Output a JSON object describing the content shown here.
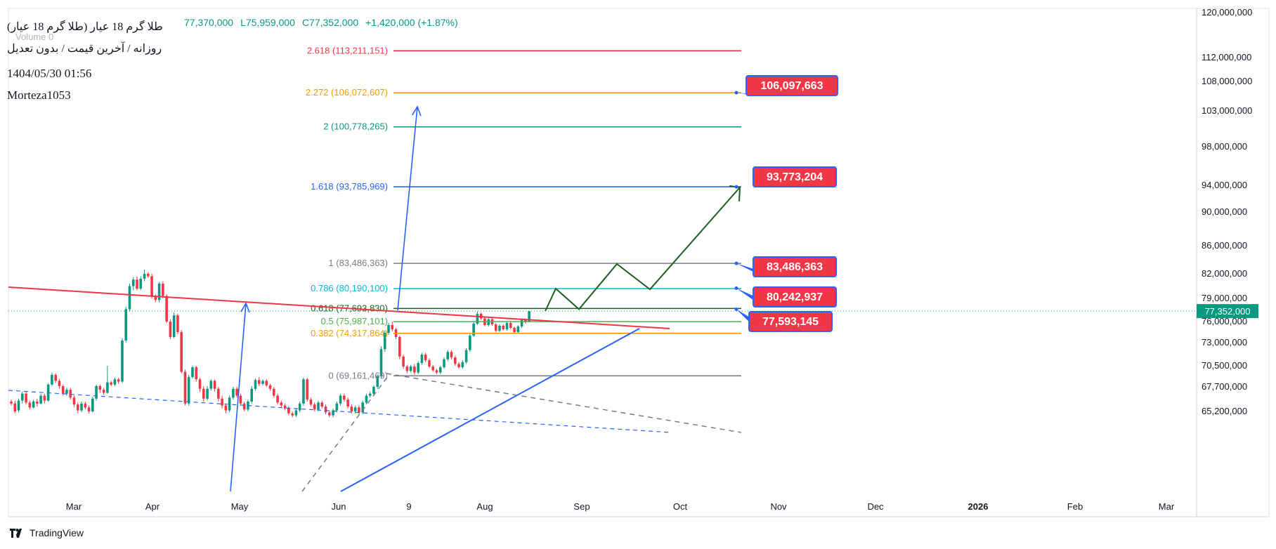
{
  "header": {
    "title": "(طلا گرم 18 عیار (طلا گرم 18 عیار",
    "subtitle": "روزانه / آخرین قیمت / بدون تعدیل",
    "date": "1404/05/30 01:56",
    "author": "Morteza1053",
    "volume_label": "Volume",
    "volume_value": "0",
    "ohlc": {
      "high": "77,370,000",
      "low": "L75,959,000",
      "close": "C77,352,000",
      "change": "+1,420,000 (+1.87%)"
    }
  },
  "brand": "TradingView",
  "colors": {
    "up": "#089981",
    "down": "#f23645",
    "price_badge": "#089981",
    "callout": "#f23645",
    "callout_border": "#2962ff",
    "projection": "#1b5e20",
    "trend_red": "#f23645",
    "trend_blue": "#2962ff"
  },
  "chart_data": {
    "type": "candlestick",
    "symbol": "طلا گرم 18 عیار",
    "interval": "daily",
    "y_axis": {
      "ticks": [
        "120,000,000",
        "112,000,000",
        "108,000,000",
        "103,000,000",
        "98,000,000",
        "94,000,000",
        "90,000,000",
        "86,000,000",
        "82,000,000",
        "79,000,000",
        "76,000,000",
        "73,000,000",
        "70,500,000",
        "67,700,000",
        "65,200,000"
      ],
      "tick_values": [
        120000000,
        112000000,
        108000000,
        103000000,
        98000000,
        94000000,
        90000000,
        86000000,
        82000000,
        79000000,
        76000000,
        73000000,
        70500000,
        67700000,
        65200000
      ]
    },
    "x_axis": {
      "ticks": [
        "Mar",
        "Apr",
        "May",
        "Jun",
        "9",
        "Aug",
        "Sep",
        "Oct",
        "Nov",
        "Dec",
        "2026",
        "Feb",
        "Mar"
      ]
    },
    "last_price": {
      "label": "77,352,000",
      "value": 77352000
    },
    "fib_levels": [
      {
        "ratio": "2.618",
        "value": 113211151,
        "label": "2.618 (113,211,151)",
        "color": "#f23645"
      },
      {
        "ratio": "2.272",
        "value": 106072607,
        "label": "2.272 (106,072,607)",
        "color": "#ff9800"
      },
      {
        "ratio": "2",
        "value": 100778265,
        "label": "2 (100,778,265)",
        "color": "#089981"
      },
      {
        "ratio": "1.618",
        "value": 93785969,
        "label": "1.618 (93,785,969)",
        "color": "#2962ff"
      },
      {
        "ratio": "1",
        "value": 83486363,
        "label": "1 (83,486,363)",
        "color": "#787b86"
      },
      {
        "ratio": "0.786",
        "value": 80190100,
        "label": "0.786 (80,190,100)",
        "color": "#00bcd4"
      },
      {
        "ratio": "0.618",
        "value": 77693830,
        "label": "0.618 (77,693,830)",
        "color": "#1b5e20"
      },
      {
        "ratio": "0.5",
        "value": 75987101,
        "label": "0.5 (75,987,101)",
        "color": "#4caf50"
      },
      {
        "ratio": "0.382",
        "value": 74317864,
        "label": "0.382 (74,317,864)",
        "color": "#ff9800"
      },
      {
        "ratio": "0",
        "value": 69161469,
        "label": "0 (69,161,469)",
        "color": "#787b86"
      }
    ],
    "targets": [
      {
        "label": "106,097,663",
        "value": 106097663
      },
      {
        "label": "93,773,204",
        "value": 93773204
      },
      {
        "label": "83,486,363",
        "value": 83486363
      },
      {
        "label": "80,242,937",
        "value": 80242937
      },
      {
        "label": "77,593,145",
        "value": 77593145
      }
    ],
    "projection_path": [
      77352000,
      80190000,
      77600000,
      83400000,
      80100000,
      93700000
    ],
    "candles": [
      [
        66200000,
        66000000,
        65800000,
        66400000
      ],
      [
        66000000,
        65200000,
        65000000,
        66300000
      ],
      [
        65300000,
        66300000,
        65100000,
        66500000
      ],
      [
        66300000,
        67000000,
        66000000,
        67200000
      ],
      [
        67000000,
        66100000,
        65900000,
        67200000
      ],
      [
        66100000,
        65600000,
        65400000,
        66300000
      ],
      [
        65600000,
        66200000,
        65500000,
        66400000
      ],
      [
        66200000,
        66000000,
        65700000,
        66500000
      ],
      [
        66000000,
        66800000,
        65900000,
        67000000
      ],
      [
        66800000,
        66300000,
        66000000,
        67000000
      ],
      [
        66300000,
        68000000,
        66200000,
        68200000
      ],
      [
        68000000,
        69300000,
        67800000,
        69600000
      ],
      [
        69300000,
        68500000,
        68200000,
        69500000
      ],
      [
        68500000,
        67800000,
        67500000,
        68800000
      ],
      [
        67800000,
        67000000,
        66800000,
        68000000
      ],
      [
        67000000,
        67400000,
        66800000,
        67600000
      ],
      [
        67400000,
        66600000,
        66400000,
        67600000
      ],
      [
        66600000,
        65900000,
        65600000,
        66800000
      ],
      [
        65900000,
        65300000,
        65000000,
        66100000
      ],
      [
        65300000,
        66000000,
        65100000,
        66200000
      ],
      [
        66000000,
        65600000,
        65400000,
        66200000
      ],
      [
        65600000,
        65200000,
        65000000,
        65800000
      ],
      [
        65200000,
        66500000,
        65100000,
        66700000
      ],
      [
        66500000,
        67800000,
        66300000,
        68000000
      ],
      [
        67800000,
        67400000,
        67100000,
        68000000
      ],
      [
        67400000,
        67100000,
        66900000,
        67600000
      ],
      [
        67100000,
        68300000,
        67000000,
        70500000
      ],
      [
        68300000,
        68000000,
        67800000,
        68500000
      ],
      [
        68000000,
        68700000,
        67800000,
        68900000
      ],
      [
        68700000,
        68400000,
        68100000,
        68900000
      ],
      [
        68400000,
        73300000,
        68200000,
        73600000
      ],
      [
        73300000,
        77600000,
        73000000,
        77900000
      ],
      [
        77600000,
        80500000,
        77300000,
        80800000
      ],
      [
        80500000,
        81300000,
        80000000,
        81600000
      ],
      [
        81300000,
        80200000,
        80000000,
        81700000
      ],
      [
        80200000,
        81400000,
        80000000,
        81700000
      ],
      [
        81400000,
        82000000,
        81100000,
        82600000
      ],
      [
        82000000,
        81700000,
        81500000,
        82200000
      ],
      [
        81700000,
        79200000,
        79000000,
        82000000
      ],
      [
        79200000,
        78800000,
        78500000,
        79500000
      ],
      [
        78800000,
        80800000,
        78500000,
        81000000
      ],
      [
        80800000,
        79300000,
        79000000,
        81100000
      ],
      [
        79300000,
        76000000,
        75800000,
        79500000
      ],
      [
        76000000,
        73800000,
        73500000,
        76300000
      ],
      [
        73800000,
        76800000,
        73600000,
        77200000
      ],
      [
        76800000,
        74500000,
        74200000,
        77000000
      ],
      [
        74500000,
        69700000,
        69500000,
        74800000
      ],
      [
        69700000,
        66000000,
        65800000,
        70000000
      ],
      [
        66000000,
        69000000,
        65800000,
        69300000
      ],
      [
        69000000,
        70300000,
        68800000,
        70500000
      ],
      [
        70300000,
        68700000,
        68400000,
        70500000
      ],
      [
        68700000,
        67500000,
        67200000,
        68900000
      ],
      [
        67500000,
        66500000,
        66200000,
        67800000
      ],
      [
        66500000,
        67500000,
        66300000,
        67800000
      ],
      [
        67500000,
        68500000,
        67300000,
        68700000
      ],
      [
        68500000,
        67500000,
        67200000,
        68700000
      ],
      [
        67500000,
        66500000,
        66200000,
        67700000
      ],
      [
        66500000,
        65800000,
        65500000,
        66800000
      ],
      [
        65800000,
        65300000,
        65000000,
        66000000
      ],
      [
        65300000,
        66600000,
        65100000,
        66800000
      ],
      [
        66600000,
        67500000,
        66400000,
        67700000
      ],
      [
        67500000,
        66800000,
        66600000,
        67700000
      ],
      [
        66800000,
        66000000,
        65800000,
        67000000
      ],
      [
        66000000,
        65400000,
        65200000,
        66200000
      ],
      [
        65400000,
        66200000,
        65200000,
        66400000
      ],
      [
        66200000,
        67500000,
        66000000,
        67800000
      ],
      [
        67500000,
        68600000,
        67300000,
        68800000
      ],
      [
        68600000,
        68100000,
        67800000,
        69000000
      ],
      [
        68100000,
        68500000,
        67900000,
        68700000
      ],
      [
        68500000,
        67900000,
        67700000,
        68700000
      ],
      [
        67900000,
        67500000,
        67300000,
        68100000
      ],
      [
        67500000,
        66800000,
        66600000,
        67700000
      ],
      [
        66800000,
        66100000,
        65900000,
        67000000
      ],
      [
        66100000,
        65800000,
        65600000,
        66300000
      ],
      [
        65800000,
        65500000,
        65300000,
        66000000
      ],
      [
        65500000,
        65000000,
        64800000,
        65700000
      ],
      [
        65000000,
        64800000,
        64600000,
        65200000
      ],
      [
        64800000,
        65300000,
        64600000,
        65500000
      ],
      [
        65300000,
        66000000,
        65100000,
        66200000
      ],
      [
        66000000,
        68700000,
        65800000,
        68900000
      ],
      [
        68700000,
        66400000,
        66200000,
        68900000
      ],
      [
        66400000,
        65900000,
        65700000,
        66600000
      ],
      [
        65900000,
        65400000,
        65200000,
        66100000
      ],
      [
        65400000,
        66100000,
        65200000,
        66300000
      ],
      [
        66100000,
        65700000,
        65500000,
        66300000
      ],
      [
        65700000,
        65100000,
        64900000,
        65900000
      ],
      [
        65100000,
        64800000,
        64600000,
        65300000
      ],
      [
        64800000,
        65300000,
        64600000,
        65500000
      ],
      [
        65300000,
        66000000,
        65100000,
        66200000
      ],
      [
        66000000,
        66800000,
        65800000,
        67000000
      ],
      [
        66800000,
        66400000,
        66200000,
        67000000
      ],
      [
        66400000,
        65700000,
        65500000,
        66600000
      ],
      [
        65700000,
        65200000,
        65000000,
        65900000
      ],
      [
        65200000,
        65600000,
        65000000,
        65800000
      ],
      [
        65600000,
        65100000,
        64900000,
        65800000
      ],
      [
        65100000,
        66100000,
        64900000,
        66300000
      ],
      [
        66100000,
        66800000,
        65900000,
        67000000
      ],
      [
        66800000,
        67000000,
        66600000,
        67200000
      ],
      [
        67000000,
        67700000,
        66800000,
        67900000
      ],
      [
        67700000,
        69100000,
        67500000,
        69300000
      ],
      [
        69100000,
        72300000,
        68900000,
        72600000
      ],
      [
        72300000,
        74400000,
        72000000,
        74700000
      ],
      [
        74400000,
        75500000,
        74100000,
        75800000
      ],
      [
        75500000,
        74900000,
        74600000,
        76000000
      ],
      [
        74900000,
        73800000,
        73500000,
        75100000
      ],
      [
        73800000,
        71500000,
        71200000,
        74000000
      ],
      [
        71500000,
        70400000,
        70100000,
        71700000
      ],
      [
        70400000,
        69800000,
        69500000,
        70600000
      ],
      [
        69800000,
        70400000,
        69600000,
        70600000
      ],
      [
        70400000,
        69600000,
        69300000,
        70700000
      ],
      [
        69600000,
        70800000,
        69400000,
        71000000
      ],
      [
        70800000,
        71700000,
        70600000,
        71900000
      ],
      [
        71700000,
        71100000,
        70900000,
        71900000
      ],
      [
        71100000,
        70400000,
        70200000,
        71300000
      ],
      [
        70400000,
        69900000,
        69700000,
        70600000
      ],
      [
        69900000,
        69600000,
        69400000,
        70100000
      ],
      [
        69600000,
        70300000,
        69400000,
        70500000
      ],
      [
        70300000,
        71200000,
        70100000,
        71400000
      ],
      [
        71200000,
        72000000,
        71000000,
        72200000
      ],
      [
        72000000,
        71400000,
        71200000,
        72200000
      ],
      [
        71400000,
        70700000,
        70500000,
        71600000
      ],
      [
        70700000,
        70300000,
        70100000,
        70900000
      ],
      [
        70300000,
        70900000,
        70100000,
        71100000
      ],
      [
        70900000,
        72200000,
        70700000,
        72400000
      ],
      [
        72200000,
        74000000,
        72000000,
        74300000
      ],
      [
        74000000,
        75700000,
        73800000,
        76000000
      ],
      [
        75700000,
        77000000,
        75500000,
        77300000
      ],
      [
        77000000,
        76400000,
        76200000,
        77200000
      ],
      [
        76400000,
        75500000,
        75300000,
        76600000
      ],
      [
        75500000,
        76300000,
        75300000,
        76500000
      ],
      [
        76300000,
        75600000,
        75400000,
        76500000
      ],
      [
        75600000,
        74700000,
        74500000,
        75800000
      ],
      [
        74700000,
        75400000,
        74500000,
        75600000
      ],
      [
        75400000,
        74900000,
        74700000,
        75600000
      ],
      [
        74900000,
        75800000,
        74700000,
        76000000
      ],
      [
        75800000,
        75100000,
        74900000,
        76000000
      ],
      [
        75100000,
        74500000,
        74300000,
        75300000
      ],
      [
        74500000,
        75300000,
        74300000,
        75500000
      ],
      [
        75300000,
        76200000,
        75100000,
        76400000
      ],
      [
        76200000,
        75900000,
        75700000,
        76400000
      ],
      [
        75959000,
        77352000,
        75959000,
        77370000
      ]
    ]
  }
}
